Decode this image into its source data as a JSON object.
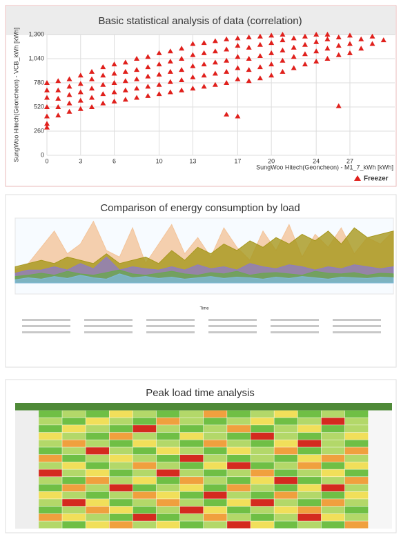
{
  "chart_data": [
    {
      "type": "scatter",
      "title": "Basic statistical analysis of data (correlation)",
      "x_label": "SungWoo Hitech(Geoncheon) - M1_7_kWh [kWh]",
      "y_label": "SungWoo Hitech(Geoncheon) - VCB_kWh [kWh]",
      "xlim": [
        0,
        31
      ],
      "xticks": [
        0,
        3,
        6,
        10,
        13,
        17,
        20,
        24,
        27
      ],
      "ylim": [
        0,
        1300
      ],
      "yticks": [
        0,
        260,
        520,
        780,
        {
          "value": 1040,
          "label": "1,040"
        },
        {
          "value": 1300,
          "label": "1,300"
        }
      ],
      "grid": true,
      "legend": "bottom-right",
      "series": [
        {
          "name": "Freezer",
          "color": "#e0201c",
          "x": [
            0,
            0,
            0,
            0,
            0,
            0,
            0,
            1,
            1,
            1,
            1,
            1,
            2,
            2,
            2,
            2,
            2,
            3,
            3,
            3,
            3,
            3,
            4,
            4,
            4,
            4,
            4,
            5,
            5,
            5,
            5,
            5,
            6,
            6,
            6,
            6,
            6,
            7,
            7,
            7,
            7,
            7,
            8,
            8,
            8,
            8,
            8,
            9,
            9,
            9,
            9,
            9,
            10,
            10,
            10,
            10,
            10,
            11,
            11,
            11,
            11,
            11,
            12,
            12,
            12,
            12,
            12,
            13,
            13,
            13,
            13,
            13,
            14,
            14,
            14,
            14,
            14,
            15,
            15,
            15,
            15,
            15,
            16,
            16,
            16,
            16,
            16,
            16,
            17,
            17,
            17,
            17,
            17,
            17,
            18,
            18,
            18,
            18,
            18,
            19,
            19,
            19,
            19,
            19,
            20,
            20,
            20,
            20,
            20,
            21,
            21,
            21,
            21,
            21,
            22,
            22,
            22,
            22,
            23,
            23,
            23,
            23,
            24,
            24,
            24,
            24,
            25,
            25,
            25,
            25,
            26,
            26,
            26,
            26,
            27,
            27,
            27,
            28,
            28,
            29,
            29,
            30
          ],
          "values": [
            300,
            340,
            420,
            520,
            620,
            700,
            780,
            430,
            520,
            610,
            700,
            800,
            470,
            560,
            650,
            740,
            820,
            500,
            590,
            680,
            770,
            860,
            520,
            620,
            720,
            820,
            900,
            560,
            660,
            760,
            860,
            950,
            580,
            680,
            780,
            880,
            980,
            600,
            700,
            800,
            900,
            1000,
            620,
            720,
            820,
            920,
            1040,
            640,
            740,
            850,
            950,
            1060,
            660,
            760,
            870,
            980,
            1100,
            680,
            790,
            900,
            1010,
            1120,
            700,
            810,
            920,
            1040,
            1150,
            720,
            840,
            960,
            1080,
            1200,
            740,
            860,
            980,
            1100,
            1210,
            760,
            880,
            1000,
            1120,
            1230,
            780,
            900,
            1020,
            1140,
            1250,
            440,
            420,
            820,
            940,
            1060,
            1180,
            1260,
            800,
            920,
            1040,
            1160,
            1270,
            830,
            950,
            1070,
            1190,
            1280,
            860,
            980,
            1100,
            1210,
            1290,
            900,
            1020,
            1130,
            1240,
            1300,
            940,
            1060,
            1160,
            1260,
            980,
            1090,
            1190,
            1280,
            1010,
            1120,
            1220,
            1300,
            1040,
            1150,
            1250,
            1300,
            1080,
            1180,
            1270,
            530,
            1100,
            1200,
            1290,
            1150,
            1250,
            1200,
            1280,
            1240
          ]
        }
      ]
    },
    {
      "type": "area",
      "title": "Comparison of energy consumption by load",
      "x_label": "Time",
      "ylim": [
        0,
        100
      ],
      "series": [
        {
          "color": "#f3c49a",
          "values": [
            20,
            30,
            55,
            80,
            45,
            60,
            95,
            50,
            40,
            85,
            30,
            60,
            90,
            45,
            70,
            40,
            85,
            55,
            35,
            80,
            50,
            90,
            40,
            75,
            55,
            85,
            45,
            70,
            60,
            80
          ]
        },
        {
          "color": "#a6971c",
          "values": [
            25,
            30,
            35,
            30,
            40,
            35,
            30,
            45,
            30,
            35,
            40,
            30,
            50,
            35,
            55,
            45,
            60,
            50,
            65,
            55,
            70,
            60,
            75,
            65,
            80,
            60,
            85,
            70,
            75,
            80
          ]
        },
        {
          "color": "#8e7cc3",
          "values": [
            15,
            20,
            20,
            25,
            20,
            30,
            22,
            40,
            20,
            25,
            22,
            20,
            25,
            20,
            28,
            22,
            25,
            20,
            30,
            25,
            22,
            28,
            25,
            20,
            25,
            22,
            28,
            25,
            22,
            25
          ]
        },
        {
          "color": "#6aa84f",
          "values": [
            10,
            12,
            15,
            12,
            18,
            14,
            12,
            16,
            20,
            14,
            12,
            15,
            18,
            14,
            12,
            16,
            14,
            18,
            12,
            15,
            16,
            14,
            12,
            18,
            15,
            14,
            16,
            12,
            15,
            14
          ]
        },
        {
          "color": "#7fb8d8",
          "values": [
            5,
            8,
            6,
            10,
            7,
            12,
            8,
            6,
            14,
            8,
            10,
            7,
            9,
            6,
            8,
            10,
            7,
            9,
            8,
            6,
            9,
            7,
            10,
            8,
            6,
            9,
            8,
            7,
            9,
            8
          ]
        }
      ]
    },
    {
      "type": "heatmap",
      "title": "Peak load time analysis",
      "colors": [
        "#6fbf45",
        "#b3d869",
        "#f1df5a",
        "#f0a03e",
        "#d42a1f"
      ],
      "values": [
        [
          1,
          2,
          1,
          3,
          2,
          1,
          2,
          4,
          1,
          2,
          3,
          1,
          2,
          1
        ],
        [
          2,
          1,
          3,
          2,
          1,
          4,
          2,
          1,
          2,
          3,
          1,
          2,
          5,
          2
        ],
        [
          1,
          3,
          2,
          1,
          5,
          2,
          1,
          2,
          4,
          1,
          2,
          3,
          1,
          2
        ],
        [
          3,
          2,
          1,
          4,
          2,
          1,
          3,
          2,
          1,
          5,
          2,
          1,
          2,
          3
        ],
        [
          2,
          4,
          2,
          1,
          3,
          2,
          1,
          4,
          2,
          1,
          3,
          5,
          2,
          1
        ],
        [
          1,
          2,
          5,
          2,
          1,
          3,
          2,
          1,
          3,
          2,
          4,
          1,
          2,
          4
        ],
        [
          4,
          1,
          2,
          3,
          2,
          1,
          5,
          2,
          1,
          2,
          1,
          3,
          4,
          2
        ],
        [
          2,
          3,
          1,
          2,
          4,
          2,
          1,
          3,
          5,
          1,
          2,
          4,
          1,
          3
        ],
        [
          5,
          2,
          3,
          1,
          2,
          5,
          2,
          1,
          2,
          4,
          1,
          2,
          3,
          1
        ],
        [
          2,
          1,
          4,
          2,
          3,
          1,
          4,
          2,
          1,
          3,
          5,
          1,
          2,
          4
        ],
        [
          1,
          4,
          2,
          5,
          1,
          2,
          3,
          1,
          4,
          2,
          1,
          3,
          5,
          2
        ],
        [
          3,
          2,
          1,
          2,
          4,
          3,
          1,
          5,
          2,
          1,
          4,
          2,
          1,
          3
        ],
        [
          2,
          5,
          3,
          1,
          2,
          4,
          2,
          1,
          3,
          5,
          2,
          1,
          4,
          2
        ],
        [
          1,
          2,
          4,
          3,
          1,
          2,
          5,
          3,
          1,
          2,
          3,
          4,
          2,
          1
        ],
        [
          4,
          3,
          2,
          1,
          5,
          1,
          2,
          4,
          2,
          1,
          2,
          5,
          3,
          2
        ],
        [
          2,
          1,
          3,
          4,
          2,
          3,
          1,
          2,
          5,
          3,
          1,
          2,
          1,
          4
        ]
      ]
    }
  ]
}
